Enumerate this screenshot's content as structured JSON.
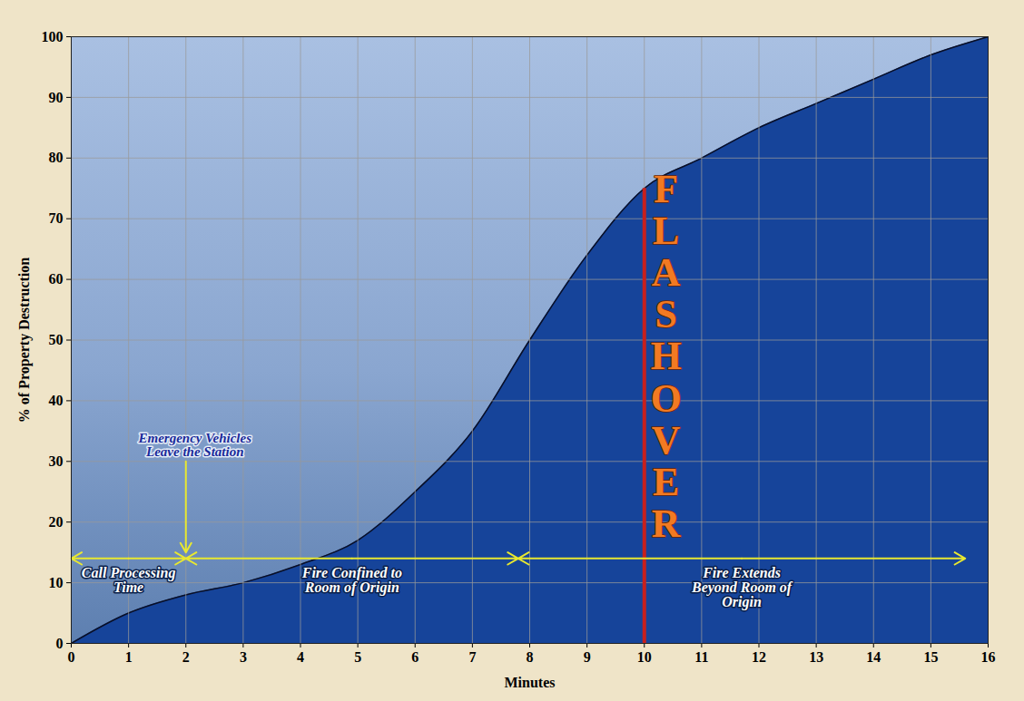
{
  "chart_data": {
    "type": "area",
    "x_label": "Minutes",
    "y_label": "% of Property Destruction",
    "x": [
      0,
      1,
      2,
      3,
      4,
      5,
      6,
      7,
      8,
      9,
      10,
      11,
      12,
      13,
      14,
      15,
      16
    ],
    "values": [
      0,
      5,
      8,
      10,
      13,
      17,
      25,
      35,
      50,
      64,
      75,
      80,
      85,
      89,
      93,
      97,
      100
    ],
    "color": "#16449a",
    "xlim": [
      0,
      16
    ],
    "ylim": [
      0,
      100
    ],
    "xticks": [
      0,
      1,
      2,
      3,
      4,
      5,
      6,
      7,
      8,
      9,
      10,
      11,
      12,
      13,
      14,
      15,
      16
    ],
    "yticks": [
      0,
      10,
      20,
      30,
      40,
      50,
      60,
      70,
      80,
      90,
      100
    ],
    "grid": true,
    "annotations": [
      {
        "text": "Emergency Vehicles Leave the Station",
        "x": 2,
        "y": 30,
        "arrow_to_y": 15
      }
    ],
    "phases": [
      {
        "text": "Call Processing Time",
        "x_start": 0,
        "x_end": 2,
        "y": 14
      },
      {
        "text": "Fire Confined to Room of Origin",
        "x_start": 2,
        "x_end": 7.8,
        "y": 14
      },
      {
        "text": "Fire Extends Beyond Room of Origin",
        "x_start": 7.8,
        "x_end": 15.6,
        "y": 14
      }
    ],
    "markers": [
      {
        "text": "FLASHOVER",
        "x": 10
      }
    ]
  }
}
